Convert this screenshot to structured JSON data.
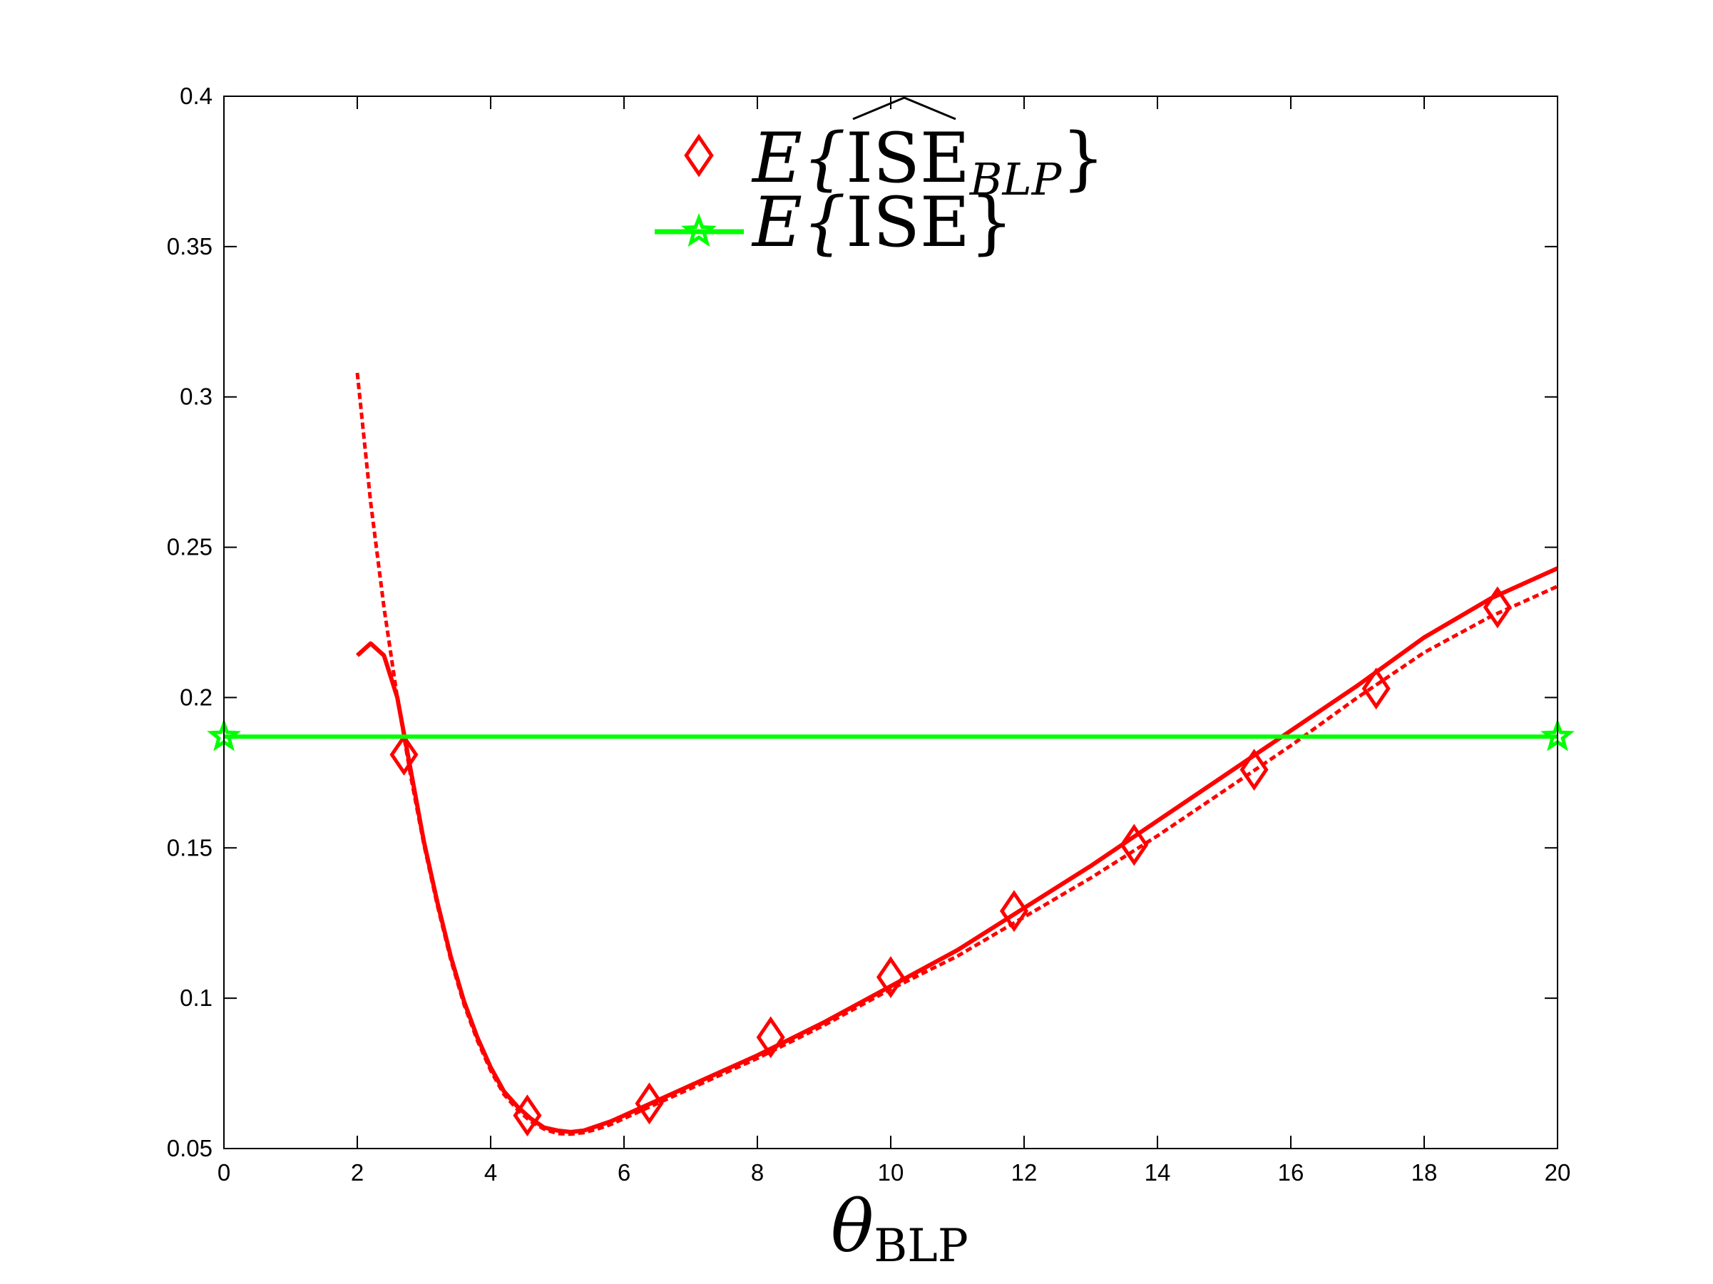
{
  "chart_data": {
    "type": "line",
    "xlabel": {
      "symbol": "θ",
      "subscript": "BLP"
    },
    "xlim": [
      0,
      20
    ],
    "ylim": [
      0.05,
      0.4
    ],
    "xticks": [
      0,
      2,
      4,
      6,
      8,
      10,
      12,
      14,
      16,
      18,
      20
    ],
    "yticks": [
      0.05,
      0.1,
      0.15,
      0.2,
      0.25,
      0.3,
      0.35,
      0.4
    ],
    "xtick_labels": [
      "0",
      "2",
      "4",
      "6",
      "8",
      "10",
      "12",
      "14",
      "16",
      "18",
      "20"
    ],
    "ytick_labels": [
      "0.05",
      "0.1",
      "0.15",
      "0.2",
      "0.25",
      "0.3",
      "0.35",
      "0.4"
    ],
    "grid": false,
    "legend_position": "top-center",
    "series": [
      {
        "legend": {
          "prefix": "E{",
          "main": "ISE",
          "hat": true,
          "subscript": "BLP",
          "suffix": "}"
        },
        "style": "solid",
        "marker": "diamond",
        "color": "#ff0000",
        "x": [
          2.0,
          2.2,
          2.4,
          2.6,
          2.8,
          3.0,
          3.2,
          3.4,
          3.6,
          3.8,
          4.0,
          4.2,
          4.4,
          4.6,
          4.8,
          5.0,
          5.2,
          5.4,
          5.6,
          5.8,
          6.0,
          6.5,
          7.0,
          8.0,
          9.0,
          10.0,
          11.0,
          12.0,
          13.0,
          14.0,
          15.0,
          16.0,
          17.0,
          18.0,
          19.0,
          20.0
        ],
        "y": [
          0.214,
          0.218,
          0.214,
          0.2,
          0.176,
          0.152,
          0.132,
          0.114,
          0.099,
          0.087,
          0.077,
          0.069,
          0.064,
          0.06,
          0.057,
          0.056,
          0.0555,
          0.056,
          0.0575,
          0.059,
          0.061,
          0.066,
          0.071,
          0.081,
          0.092,
          0.104,
          0.116,
          0.13,
          0.144,
          0.159,
          0.174,
          0.189,
          0.204,
          0.22,
          0.233,
          0.243
        ],
        "marker_x": [
          2.7,
          4.55,
          6.38,
          8.2,
          10.0,
          11.85,
          13.65,
          15.45,
          17.28,
          19.1
        ],
        "marker_y": [
          0.181,
          0.061,
          0.065,
          0.087,
          0.107,
          0.129,
          0.151,
          0.176,
          0.203,
          0.23
        ]
      },
      {
        "style": "dashed",
        "marker": "none",
        "color": "#ff0000",
        "x": [
          2.0,
          2.2,
          2.4,
          2.6,
          2.8,
          3.0,
          3.2,
          3.4,
          3.6,
          3.8,
          4.0,
          4.2,
          4.4,
          4.6,
          4.8,
          5.0,
          5.2,
          5.4,
          5.6,
          5.8,
          6.0,
          6.5,
          7.0,
          8.0,
          9.0,
          10.0,
          11.0,
          12.0,
          13.0,
          14.0,
          15.0,
          16.0,
          17.0,
          18.0,
          19.0,
          20.0
        ],
        "y": [
          0.308,
          0.265,
          0.23,
          0.2,
          0.174,
          0.151,
          0.131,
          0.113,
          0.098,
          0.086,
          0.076,
          0.068,
          0.063,
          0.059,
          0.0565,
          0.055,
          0.0548,
          0.0553,
          0.0565,
          0.058,
          0.06,
          0.065,
          0.07,
          0.08,
          0.091,
          0.103,
          0.114,
          0.127,
          0.14,
          0.154,
          0.169,
          0.184,
          0.2,
          0.215,
          0.227,
          0.237
        ]
      },
      {
        "legend": {
          "prefix": "E{",
          "main": "ISE",
          "hat": false,
          "suffix": "}"
        },
        "style": "solid",
        "marker": "star",
        "color": "#00ff00",
        "x": [
          0,
          20
        ],
        "y": [
          0.187,
          0.187
        ],
        "marker_x": [
          0,
          20
        ],
        "marker_y": [
          0.187,
          0.187
        ]
      }
    ]
  }
}
